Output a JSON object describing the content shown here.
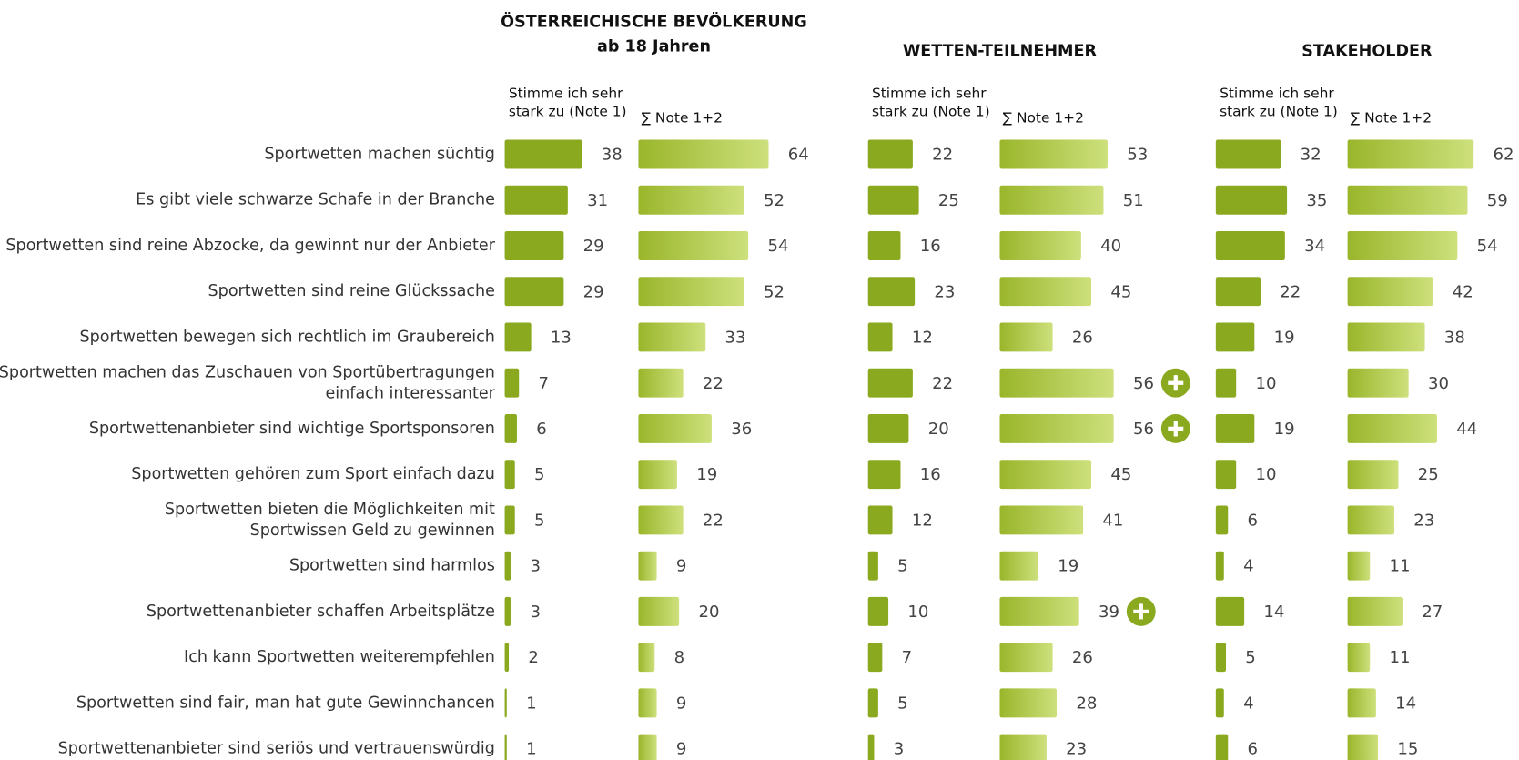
{
  "chart_data": {
    "type": "bar",
    "orientation": "horizontal",
    "categories": [
      "Sportwetten machen süchtig",
      "Es gibt viele schwarze Schafe in der Branche",
      "Sportwetten sind reine Abzocke, da gewinnt nur der Anbieter",
      "Sportwetten sind reine Glückssache",
      "Sportwetten bewegen sich rechtlich im Graubereich",
      "Sportwetten machen das Zuschauen von Sportübertragungen\neinfach interessanter",
      "Sportwettenanbieter sind wichtige Sportsponsoren",
      "Sportwetten gehören zum Sport einfach dazu",
      "Sportwetten bieten die Möglichkeiten mit\nSportwissen Geld zu gewinnen",
      "Sportwetten sind harmlos",
      "Sportwettenanbieter schaffen Arbeitsplätze",
      "Ich kann Sportwetten weiterempfehlen",
      "Sportwetten sind fair, man hat gute Gewinnchancen",
      "Sportwettenanbieter sind seriös und vertrauenswürdig"
    ],
    "panels": [
      {
        "title": "ÖSTERREICHISCHE BEVÖLKERUNG",
        "subtitle": "ab 18 Jahren",
        "series": [
          {
            "name": "Stimme ich sehr\nstark zu (Note 1)",
            "color": "#8aa91f",
            "values": [
              38,
              31,
              29,
              29,
              13,
              7,
              6,
              5,
              5,
              3,
              3,
              2,
              1,
              1
            ]
          },
          {
            "name": "∑ Note 1+2",
            "color": "#cde07c",
            "values": [
              64,
              52,
              54,
              52,
              33,
              22,
              36,
              19,
              22,
              9,
              20,
              8,
              9,
              9
            ]
          }
        ]
      },
      {
        "title": "WETTEN-TEILNEHMER",
        "series": [
          {
            "name": "Stimme ich sehr\nstark zu (Note 1)",
            "color": "#8aa91f",
            "values": [
              22,
              25,
              16,
              23,
              12,
              22,
              20,
              16,
              12,
              5,
              10,
              7,
              5,
              3
            ]
          },
          {
            "name": "∑ Note 1+2",
            "color": "#cde07c",
            "values": [
              53,
              51,
              40,
              45,
              26,
              56,
              56,
              45,
              41,
              19,
              39,
              26,
              28,
              23
            ]
          }
        ],
        "highlight": [
          5,
          6,
          10
        ]
      },
      {
        "title": "STAKEHOLDER",
        "series": [
          {
            "name": "Stimme ich sehr\nstark zu (Note 1)",
            "color": "#8aa91f",
            "values": [
              32,
              35,
              34,
              22,
              19,
              10,
              19,
              10,
              6,
              4,
              14,
              5,
              4,
              6
            ]
          },
          {
            "name": "∑ Note 1+2",
            "color": "#cde07c",
            "values": [
              62,
              59,
              54,
              42,
              38,
              30,
              44,
              25,
              23,
              11,
              27,
              11,
              14,
              15
            ]
          }
        ]
      }
    ]
  }
}
